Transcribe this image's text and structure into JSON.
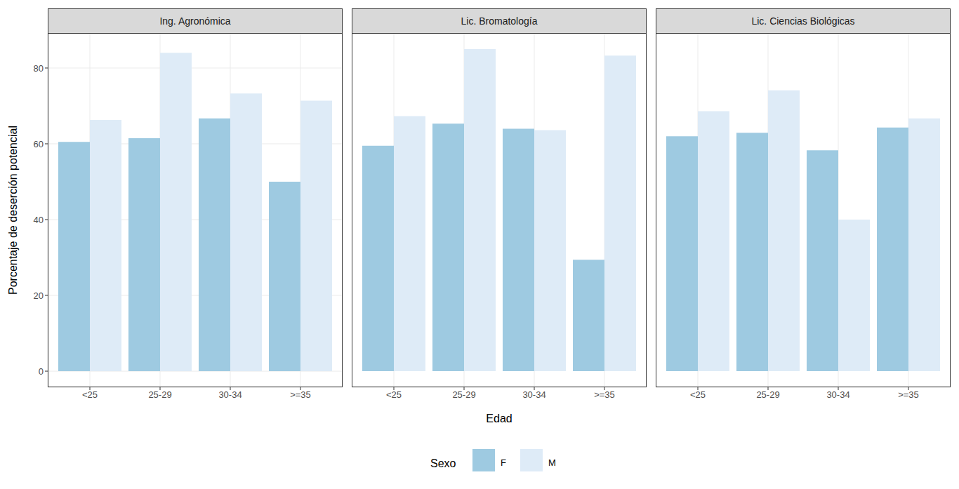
{
  "chart_data": [
    {
      "type": "bar",
      "title": "Ing. Agronómica",
      "y_label": "Porcentaje de deserción potencial",
      "categories": [
        "<25",
        "25-29",
        "30-34",
        ">=35"
      ],
      "series": [
        {
          "name": "F",
          "color": "#9ecae1",
          "values": [
            60.5,
            61.5,
            66.7,
            50
          ]
        },
        {
          "name": "M",
          "color": "#deebf7",
          "values": [
            66.3,
            84,
            73.3,
            71.4
          ]
        }
      ],
      "ylim": [
        -4.25,
        89.25
      ],
      "yticks": [
        0,
        20,
        40,
        60,
        80
      ],
      "grid": true
    },
    {
      "type": "bar",
      "title": "Lic. Bromatología",
      "x_label": "Edad",
      "legend": "bottom",
      "legend_title": "Sexo",
      "categories": [
        "<25",
        "25-29",
        "30-34",
        ">=35"
      ],
      "series": [
        {
          "name": "F",
          "color": "#9ecae1",
          "values": [
            59.5,
            65.3,
            64,
            29.4
          ]
        },
        {
          "name": "M",
          "color": "#deebf7",
          "values": [
            67.3,
            85,
            63.6,
            83.3
          ]
        }
      ],
      "ylim": [
        -4.25,
        89.25
      ],
      "yticks": [
        0,
        20,
        40,
        60,
        80
      ],
      "grid": true,
      "tick_labels": "x"
    },
    {
      "type": "bar",
      "title": "Lic. Ciencias Biológicas",
      "categories": [
        "<25",
        "25-29",
        "30-34",
        ">=35"
      ],
      "series": [
        {
          "name": "F",
          "color": "#9ecae1",
          "values": [
            62,
            62.9,
            58.3,
            64.3
          ]
        },
        {
          "name": "M",
          "color": "#deebf7",
          "values": [
            68.6,
            74.1,
            40,
            66.7
          ]
        }
      ],
      "ylim": [
        -4.25,
        89.25
      ],
      "yticks": [
        0,
        20,
        40,
        60,
        80
      ],
      "grid": true,
      "tick_labels": "x"
    }
  ]
}
